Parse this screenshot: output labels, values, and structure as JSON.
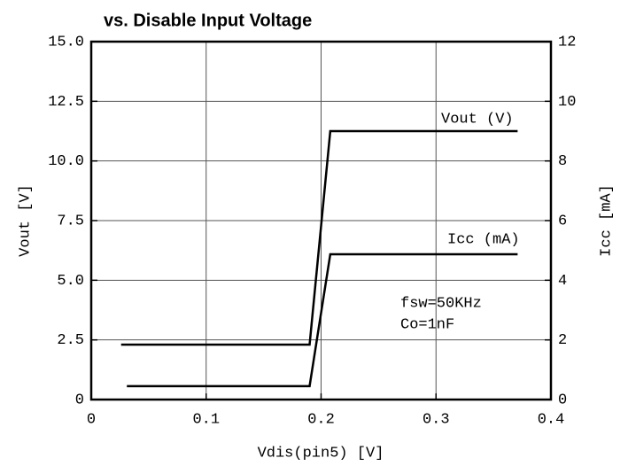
{
  "chart_data": {
    "type": "line",
    "title": "vs. Disable Input Voltage",
    "xlabel": "Vdis(pin5) [V]",
    "ylabel": "Vout [V]",
    "y2label": "Icc [mA]",
    "xlim": [
      0,
      0.4
    ],
    "xticks": [
      0,
      0.1,
      0.2,
      0.3,
      0.4
    ],
    "ylim": [
      0,
      15
    ],
    "yticks": [
      0,
      2.5,
      {
        "value": 5,
        "label": "5.0"
      },
      7.5,
      {
        "value": 10,
        "label": "10.0"
      },
      12.5,
      {
        "value": 15,
        "label": "15.0"
      }
    ],
    "y2lim": [
      0,
      12
    ],
    "y2ticks": [
      0,
      2,
      4,
      6,
      8,
      10,
      12
    ],
    "grid": true,
    "series": [
      {
        "name": "Vout (V)",
        "color": "#000000",
        "x": [
          0.026,
          0.19,
          0.208,
          0.371
        ],
        "values": [
          2.3,
          2.3,
          11.25,
          11.25
        ]
      },
      {
        "name": "Icc (mA)",
        "color": "#000000",
        "axis": "y2",
        "x": [
          0.031,
          0.19,
          0.208,
          0.371
        ],
        "values": [
          0.45,
          0.45,
          4.87,
          4.87
        ]
      }
    ],
    "annotations": [
      "fsw=50KHz",
      "Co=1nF"
    ]
  }
}
